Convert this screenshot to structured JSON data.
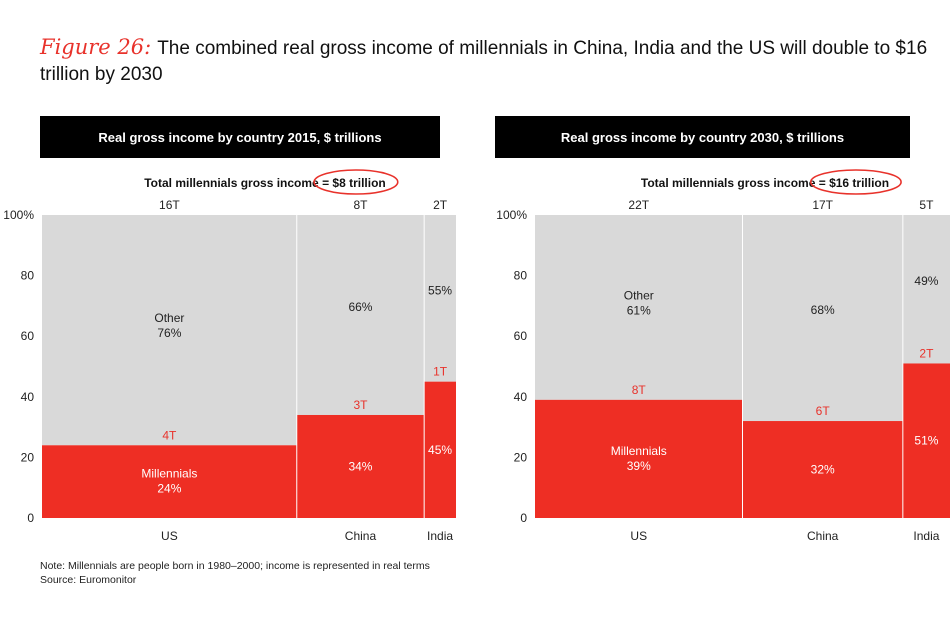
{
  "title": {
    "figure_label": "Figure 26:",
    "text": "The combined real gross income of millennials in China, India and the US will double to $16 trillion by 2030"
  },
  "colors": {
    "millennials": "#ee2e24",
    "other": "#d9d9d9",
    "accent": "#e8322b",
    "banner": "#000000"
  },
  "chart_data": [
    {
      "type": "marimekko",
      "title": "Real gross income by country 2015, $ trillions",
      "total_label": "Total millennials gross income",
      "total_value": "= $8 trillion",
      "y_ticks": [
        "0",
        "20",
        "40",
        "60",
        "80",
        "100%"
      ],
      "ylim": [
        0,
        100
      ],
      "series_labels": {
        "other": "Other",
        "millennials": "Millennials"
      },
      "countries": [
        {
          "name": "US",
          "total": 16,
          "total_label": "16T",
          "millennials_pct": 24,
          "other_pct": 76,
          "millennials_label": "4T"
        },
        {
          "name": "China",
          "total": 8,
          "total_label": "8T",
          "millennials_pct": 34,
          "other_pct": 66,
          "millennials_label": "3T"
        },
        {
          "name": "India",
          "total": 2,
          "total_label": "2T",
          "millennials_pct": 45,
          "other_pct": 55,
          "millennials_label": "1T"
        }
      ]
    },
    {
      "type": "marimekko",
      "title": "Real gross income by country 2030, $ trillions",
      "total_label": "Total millennials gross income",
      "total_value": "= $16 trillion",
      "y_ticks": [
        "0",
        "20",
        "40",
        "60",
        "80",
        "100%"
      ],
      "ylim": [
        0,
        100
      ],
      "series_labels": {
        "other": "Other",
        "millennials": "Millennials"
      },
      "countries": [
        {
          "name": "US",
          "total": 22,
          "total_label": "22T",
          "millennials_pct": 39,
          "other_pct": 61,
          "millennials_label": "8T"
        },
        {
          "name": "China",
          "total": 17,
          "total_label": "17T",
          "millennials_pct": 32,
          "other_pct": 68,
          "millennials_label": "6T"
        },
        {
          "name": "India",
          "total": 5,
          "total_label": "5T",
          "millennials_pct": 51,
          "other_pct": 49,
          "millennials_label": "2T"
        }
      ]
    }
  ],
  "footer": {
    "note": "Note: Millennials are people born in 1980–2000; income is represented in real terms",
    "source": "Source: Euromonitor"
  }
}
